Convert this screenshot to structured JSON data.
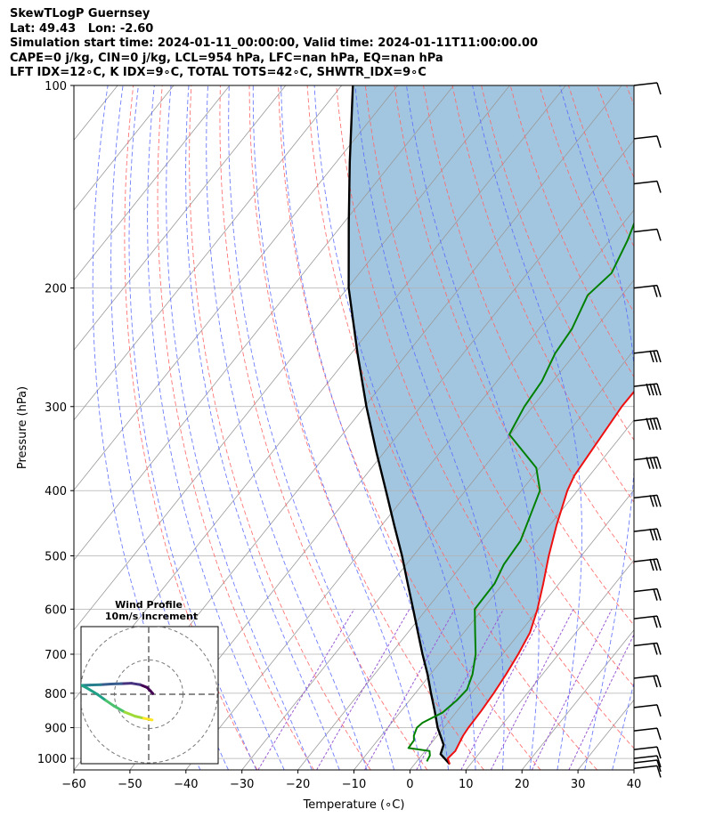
{
  "header": {
    "line1": "SkewTLogP Guernsey",
    "line2": "Lat: 49.43   Lon: -2.60",
    "line3": "Simulation start time: 2024-01-11_00:00:00, Valid time: 2024-01-11T11:00:00.00",
    "line4": "CAPE=0 j/kg, CIN=0 j/kg, LCL=954 hPa, LFC=nan hPa, EQ=nan hPa",
    "line5": "LFT IDX=12$^\\circ$C, K IDX=9$^\\circ$C, TOTAL TOTS=42$^\\circ$C, SHWTR_IDX=9$^\\circ$C"
  },
  "header_display": {
    "line5": "LFT IDX=12∘C, K IDX=9∘C, TOTAL TOTS=42∘C, SHWTR_IDX=9∘C"
  },
  "chart_data": [
    {
      "type": "line",
      "subtype": "skewt-logp",
      "xlabel": "Temperature (∘C)",
      "ylabel": "Pressure (hPa)",
      "xlim": [
        -60,
        40
      ],
      "ylim": [
        1040,
        100
      ],
      "yscale": "log",
      "x_ticks": [
        "−60",
        "−50",
        "−40",
        "−30",
        "−20",
        "−10",
        "0",
        "10",
        "20",
        "30",
        "40"
      ],
      "x_tick_values": [
        -60,
        -50,
        -40,
        -30,
        -20,
        -10,
        0,
        10,
        20,
        30,
        40
      ],
      "y_ticks": [
        "100",
        "200",
        "300",
        "400",
        "500",
        "600",
        "700",
        "800",
        "900",
        "1000"
      ],
      "y_tick_values": [
        100,
        200,
        300,
        400,
        500,
        600,
        700,
        800,
        900,
        1000
      ],
      "grid": true,
      "colors": {
        "temperature": "#ee1111",
        "dewpoint": "#008000",
        "parcel": "#000000",
        "cape_fill": "#a3c6e0",
        "dry_adiabat": "#ff6666",
        "moist_adiabat": "#5566ff",
        "isotherm": "#999999",
        "mixing_ratio": "#9b5bd3"
      },
      "series": [],
      "temperature_profile": [
        [
          1020,
          6.3
        ],
        [
          1000,
          5.1
        ],
        [
          975,
          5.4
        ],
        [
          950,
          5.0
        ],
        [
          925,
          4.6
        ],
        [
          900,
          4.4
        ],
        [
          850,
          4.3
        ],
        [
          800,
          4.0
        ],
        [
          750,
          3.5
        ],
        [
          700,
          2.8
        ],
        [
          650,
          1.8
        ],
        [
          600,
          -0.2
        ],
        [
          550,
          -2.8
        ],
        [
          500,
          -5.8
        ],
        [
          450,
          -8.8
        ],
        [
          400,
          -11.8
        ],
        [
          380,
          -12.7
        ],
        [
          350,
          -13.2
        ],
        [
          300,
          -14.1
        ],
        [
          275,
          -14.0
        ],
        [
          250,
          -12.8
        ],
        [
          225,
          -10.5
        ],
        [
          205,
          -7.8
        ],
        [
          190,
          -4.6
        ],
        [
          170,
          -2.4
        ],
        [
          160,
          -0.9
        ],
        [
          150,
          0.7
        ],
        [
          140,
          2.6
        ],
        [
          127,
          3.5
        ],
        [
          117,
          3.5
        ],
        [
          108,
          4.5
        ],
        [
          100,
          6.5
        ]
      ],
      "dewpoint_profile": [
        [
          1010,
          1.8
        ],
        [
          990,
          1.5
        ],
        [
          975,
          0.8
        ],
        [
          965,
          -3.4
        ],
        [
          940,
          -3.5
        ],
        [
          925,
          -4.2
        ],
        [
          900,
          -4.8
        ],
        [
          885,
          -4.5
        ],
        [
          855,
          -2.4
        ],
        [
          820,
          -1.6
        ],
        [
          790,
          -1.3
        ],
        [
          750,
          -2.5
        ],
        [
          700,
          -4.8
        ],
        [
          650,
          -8.0
        ],
        [
          600,
          -11.4
        ],
        [
          550,
          -11.5
        ],
        [
          515,
          -12.6
        ],
        [
          475,
          -13.0
        ],
        [
          400,
          -16.7
        ],
        [
          370,
          -20.6
        ],
        [
          330,
          -30.2
        ],
        [
          300,
          -31.5
        ],
        [
          275,
          -32.0
        ],
        [
          250,
          -33.6
        ],
        [
          230,
          -34.1
        ],
        [
          205,
          -36.1
        ],
        [
          190,
          -35.0
        ],
        [
          170,
          -36.8
        ],
        [
          160,
          -38.1
        ],
        [
          150,
          -39.2
        ],
        [
          120,
          -34.0
        ],
        [
          100,
          -26.0
        ]
      ],
      "parcel_profile": [
        [
          1020,
          6.3
        ],
        [
          985,
          3.2
        ],
        [
          954,
          2.4
        ],
        [
          900,
          -1.1
        ],
        [
          850,
          -4.0
        ],
        [
          800,
          -7.2
        ],
        [
          750,
          -10.5
        ],
        [
          700,
          -14.3
        ],
        [
          650,
          -18.2
        ],
        [
          600,
          -22.4
        ],
        [
          550,
          -27.0
        ],
        [
          500,
          -32.0
        ],
        [
          450,
          -37.8
        ],
        [
          400,
          -44.2
        ],
        [
          350,
          -51.5
        ],
        [
          300,
          -59.7
        ],
        [
          250,
          -68.9
        ],
        [
          200,
          -79.8
        ],
        [
          160,
          -89.1
        ],
        [
          130,
          -97.6
        ],
        [
          100,
          -108.0
        ]
      ],
      "wind_barbs": [
        {
          "p": 100,
          "barb": "10"
        },
        {
          "p": 120,
          "barb": "10"
        },
        {
          "p": 140,
          "barb": "10"
        },
        {
          "p": 165,
          "barb": "10"
        },
        {
          "p": 200,
          "barb": "15"
        },
        {
          "p": 250,
          "barb": "25"
        },
        {
          "p": 280,
          "barb": "35"
        },
        {
          "p": 315,
          "barb": "35"
        },
        {
          "p": 360,
          "barb": "35"
        },
        {
          "p": 410,
          "barb": "25"
        },
        {
          "p": 460,
          "barb": "25"
        },
        {
          "p": 510,
          "barb": "25"
        },
        {
          "p": 565,
          "barb": "20"
        },
        {
          "p": 620,
          "barb": "15"
        },
        {
          "p": 680,
          "barb": "15"
        },
        {
          "p": 760,
          "barb": "15"
        },
        {
          "p": 840,
          "barb": "10"
        },
        {
          "p": 910,
          "barb": "10"
        },
        {
          "p": 970,
          "barb": "10"
        },
        {
          "p": 1000,
          "barb": "10"
        },
        {
          "p": 1015,
          "barb": "10"
        },
        {
          "p": 1035,
          "barb": "10"
        }
      ]
    },
    {
      "type": "scatter",
      "subtype": "hodograph",
      "title": "Wind Profile",
      "subtitle": "10m/s increment",
      "xlim": [
        -20,
        20
      ],
      "ylim": [
        -20,
        20
      ],
      "ring_values": [
        10,
        20
      ],
      "grid": true,
      "points": [
        [
          1.2,
          0.2
        ],
        [
          0.5,
          1.0
        ],
        [
          -0.5,
          2.0
        ],
        [
          -2.5,
          2.8
        ],
        [
          -5.0,
          3.2
        ],
        [
          -8.0,
          3.1
        ],
        [
          -11.0,
          3.0
        ],
        [
          -14.0,
          2.8
        ],
        [
          -17.0,
          2.7
        ],
        [
          -19.5,
          2.6
        ],
        [
          -18.0,
          1.8
        ],
        [
          -15.0,
          0.0
        ],
        [
          -12.5,
          -1.8
        ],
        [
          -10.0,
          -3.5
        ],
        [
          -7.0,
          -5.2
        ],
        [
          -4.0,
          -6.4
        ],
        [
          -1.5,
          -7.0
        ],
        [
          0.5,
          -7.4
        ],
        [
          1.0,
          -7.5
        ]
      ]
    }
  ]
}
